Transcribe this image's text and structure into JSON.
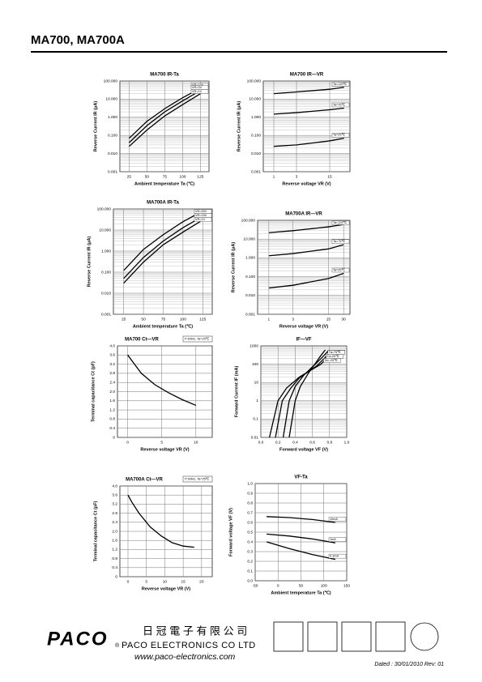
{
  "header": {
    "title": "MA700, MA700A"
  },
  "chart_data": [
    {
      "type": "line",
      "title": "MA700 IR-Ta",
      "x_label": "Ambient temperature Ta (℃)",
      "y_label": "Reverse Current IR (μA)",
      "ylog": true,
      "xlim": [
        12,
        137
      ],
      "ylim": [
        0.001,
        100
      ],
      "xticks": [
        25,
        50,
        75,
        100,
        125
      ],
      "yticks": [
        {
          "value": 0.001,
          "label": "0.001"
        },
        {
          "value": 0.01,
          "label": "0.010"
        },
        {
          "value": 0.1,
          "label": "0.100"
        },
        {
          "value": 1,
          "label": "1.000"
        },
        {
          "value": 10,
          "label": "10.000"
        },
        {
          "value": 100,
          "label": "100.000"
        }
      ],
      "grid": true,
      "color": "#000000",
      "series": [
        {
          "name": "VR=15V",
          "x": [
            25,
            50,
            75,
            100,
            125
          ],
          "values": [
            0.07,
            0.6,
            3,
            12,
            40
          ]
        },
        {
          "name": "VR=3V",
          "x": [
            25,
            50,
            75,
            100,
            125
          ],
          "values": [
            0.04,
            0.35,
            2,
            8,
            30
          ]
        },
        {
          "name": "VR=1V",
          "x": [
            25,
            50,
            75,
            100,
            125
          ],
          "values": [
            0.025,
            0.2,
            1.2,
            5,
            20
          ]
        }
      ]
    },
    {
      "type": "line",
      "title": "MA700   IR—VR",
      "x_label": "Reverse voltage VR (V)",
      "y_label": "Reverse Current IR (μA)",
      "ylog": true,
      "xlog": true,
      "xlim": [
        0.6,
        40
      ],
      "ylim": [
        0.001,
        100
      ],
      "xticks": [
        1,
        3,
        15
      ],
      "yticks": [
        {
          "value": 0.001,
          "label": "0.001"
        },
        {
          "value": 0.01,
          "label": "0.010"
        },
        {
          "value": 0.1,
          "label": "0.100"
        },
        {
          "value": 1,
          "label": "1.000"
        },
        {
          "value": 10,
          "label": "10.000"
        },
        {
          "value": 100,
          "label": "100.000"
        }
      ],
      "grid": true,
      "color": "#000000",
      "series": [
        {
          "name": "Ta=125℃",
          "x": [
            1,
            3,
            15,
            30
          ],
          "values": [
            20,
            25,
            35,
            45
          ]
        },
        {
          "name": "Ta=75℃",
          "x": [
            1,
            3,
            15,
            30
          ],
          "values": [
            1.5,
            1.8,
            2.6,
            3.2
          ]
        },
        {
          "name": "Ta=25℃",
          "x": [
            1,
            3,
            15,
            30
          ],
          "values": [
            0.025,
            0.03,
            0.05,
            0.07
          ]
        }
      ]
    },
    {
      "type": "line",
      "title": "MA700A IR-Ta",
      "x_label": "Ambient temperature Ta (℃)",
      "y_label": "Reverse Current IR (μA)",
      "ylog": true,
      "xlim": [
        12,
        137
      ],
      "ylim": [
        0.001,
        100
      ],
      "xticks": [
        25,
        50,
        75,
        100,
        125
      ],
      "yticks": [
        {
          "value": 0.001,
          "label": "0.001"
        },
        {
          "value": 0.01,
          "label": "0.010"
        },
        {
          "value": 0.1,
          "label": "0.100"
        },
        {
          "value": 1,
          "label": "1.000"
        },
        {
          "value": 10,
          "label": "10.000"
        },
        {
          "value": 100,
          "label": "100.000"
        }
      ],
      "grid": true,
      "color": "#000000",
      "series": [
        {
          "name": "VR=30V",
          "x": [
            25,
            50,
            75,
            100,
            125
          ],
          "values": [
            0.12,
            1.2,
            6,
            25,
            80
          ]
        },
        {
          "name": "VR=15V",
          "x": [
            25,
            50,
            75,
            100,
            125
          ],
          "values": [
            0.05,
            0.5,
            3,
            13,
            45
          ]
        },
        {
          "name": "VR=1V",
          "x": [
            25,
            50,
            75,
            100,
            125
          ],
          "values": [
            0.03,
            0.3,
            2,
            8,
            30
          ]
        }
      ]
    },
    {
      "type": "line",
      "title": "MA700A    IR—VR",
      "x_label": "Reverse voltage VR (V)",
      "y_label": "Reverse Current IR (μA)",
      "ylog": true,
      "xlog": true,
      "xlim": [
        0.6,
        40
      ],
      "ylim": [
        0.001,
        100
      ],
      "xticks": [
        1,
        3,
        15,
        30
      ],
      "yticks": [
        {
          "value": 0.001,
          "label": "0.001"
        },
        {
          "value": 0.01,
          "label": "0.010"
        },
        {
          "value": 0.1,
          "label": "0.100"
        },
        {
          "value": 1,
          "label": "1.000"
        },
        {
          "value": 10,
          "label": "10.000"
        },
        {
          "value": 100,
          "label": "100.000"
        }
      ],
      "grid": true,
      "color": "#000000",
      "series": [
        {
          "name": "Ta=125℃",
          "x": [
            1,
            3,
            15,
            30
          ],
          "values": [
            22,
            28,
            45,
            60
          ]
        },
        {
          "name": "Ta=75℃",
          "x": [
            1,
            3,
            15,
            30
          ],
          "values": [
            1.3,
            1.7,
            3,
            5
          ]
        },
        {
          "name": "Ta=25℃",
          "x": [
            1,
            3,
            15,
            30
          ],
          "values": [
            0.025,
            0.035,
            0.08,
            0.15
          ]
        }
      ]
    },
    {
      "type": "line",
      "title": "MA700    Ct—VR",
      "note": "f=1MHz, Ta=25℃",
      "x_label": "Reverse voltage VR (V)",
      "y_label": "Terminal capacitance Ct (pF)",
      "xlim": [
        -1.5,
        12.4
      ],
      "ylim": [
        0,
        4
      ],
      "xticks": [
        0,
        5,
        10
      ],
      "yticks": [
        0,
        0.4,
        0.8,
        1.2,
        1.6,
        {
          "value": 2,
          "label": "2.0"
        },
        2.4,
        2.8,
        3.2,
        3.6,
        {
          "value": 4,
          "label": "4.0"
        }
      ],
      "grid": true,
      "color": "#000000",
      "series": [
        {
          "name": null,
          "x": [
            0,
            1,
            2,
            3,
            4,
            6,
            8,
            10
          ],
          "values": [
            3.6,
            3.2,
            2.8,
            2.55,
            2.3,
            1.95,
            1.65,
            1.4
          ]
        }
      ]
    },
    {
      "type": "line",
      "title": "IF—VF",
      "x_label": "Forward voltage VF (V)",
      "y_label": "Forward Current IF (mA)",
      "ylog": true,
      "xlim": [
        0,
        1
      ],
      "ylim": [
        0.01,
        1000
      ],
      "xticks": [
        {
          "value": 0,
          "label": "0.0"
        },
        0.2,
        0.4,
        0.6,
        0.8,
        {
          "value": 1,
          "label": "1.0"
        }
      ],
      "yticks": [
        0.01,
        0.1,
        1,
        10,
        100,
        1000
      ],
      "grid": true,
      "color": "#000000",
      "series": [
        {
          "name": "Ta=125℃",
          "x": [
            0.1,
            0.2,
            0.3,
            0.45,
            0.7,
            0.8
          ],
          "values": [
            0.01,
            1,
            5,
            20,
            100,
            300
          ]
        },
        {
          "name": "Ta=75℃",
          "x": [
            0.17,
            0.25,
            0.35,
            0.45,
            0.65,
            0.8
          ],
          "values": [
            0.01,
            1,
            5,
            18,
            80,
            400
          ]
        },
        {
          "name": "Ta=25℃",
          "x": [
            0.26,
            0.33,
            0.4,
            0.5,
            0.7,
            0.78
          ],
          "values": [
            0.01,
            1,
            6,
            25,
            200,
            500
          ]
        },
        {
          "name": "Ta=-25℃",
          "x": [
            0.33,
            0.4,
            0.46,
            0.55,
            0.7,
            0.75
          ],
          "values": [
            0.01,
            1,
            6,
            30,
            300,
            600
          ]
        }
      ]
    },
    {
      "type": "line",
      "title": "MA700A    Ct—VR",
      "note": "f=1MHz, Ta=25℃",
      "x_label": "Reverse voltage VR (V)",
      "y_label": "Terminal capacitance Ct (pF)",
      "xlim": [
        -2.2,
        22.9
      ],
      "ylim": [
        0,
        4
      ],
      "xticks": [
        0,
        5,
        10,
        15,
        20
      ],
      "yticks": [
        0,
        0.4,
        0.8,
        1.2,
        1.6,
        {
          "value": 2,
          "label": "2.0"
        },
        2.4,
        2.8,
        3.2,
        3.6,
        {
          "value": 4,
          "label": "4.0"
        }
      ],
      "grid": true,
      "color": "#000000",
      "series": [
        {
          "name": null,
          "x": [
            0,
            1,
            3,
            6,
            9,
            12,
            15,
            18
          ],
          "values": [
            3.6,
            3.3,
            2.8,
            2.2,
            1.8,
            1.5,
            1.35,
            1.3
          ]
        }
      ]
    },
    {
      "type": "line",
      "title": "VF-Ta",
      "x_label": "Ambient temperature Ta (℃)",
      "y_label": "Forward voltage VF (V)",
      "xlim": [
        -50,
        150
      ],
      "ylim": [
        0,
        1
      ],
      "xticks": [
        -50,
        0,
        50,
        100,
        150
      ],
      "yticks": [
        {
          "value": 0,
          "label": "0.0"
        },
        0.1,
        0.2,
        0.3,
        0.4,
        0.5,
        0.6,
        0.7,
        0.8,
        0.9,
        {
          "value": 1,
          "label": "1.0"
        }
      ],
      "grid": true,
      "color": "#000000",
      "series": [
        {
          "name": "10mA",
          "x": [
            -25,
            25,
            75,
            125
          ],
          "values": [
            0.66,
            0.65,
            0.63,
            0.6
          ]
        },
        {
          "name": "1mA",
          "x": [
            -25,
            25,
            75,
            125
          ],
          "values": [
            0.48,
            0.46,
            0.43,
            0.39
          ]
        },
        {
          "name": "0.1mA",
          "x": [
            -25,
            25,
            75,
            125
          ],
          "values": [
            0.4,
            0.33,
            0.27,
            0.22
          ]
        }
      ]
    }
  ],
  "footer": {
    "logo": "PACO",
    "registered": "®",
    "chinese_name": "日 冠 電 子 有 限 公 司",
    "company": "PACO ELECTRONICS CO LTD",
    "url": "www.paco-electronics.com",
    "dated": "Dated : 30/01/2010   Rev: 01"
  }
}
